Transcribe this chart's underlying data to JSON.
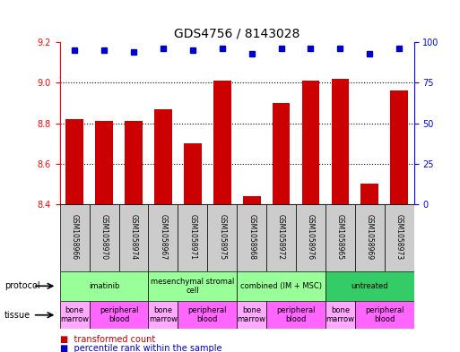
{
  "title": "GDS4756 / 8143028",
  "samples": [
    "GSM1058966",
    "GSM1058970",
    "GSM1058974",
    "GSM1058967",
    "GSM1058971",
    "GSM1058975",
    "GSM1058968",
    "GSM1058972",
    "GSM1058976",
    "GSM1058965",
    "GSM1058969",
    "GSM1058973"
  ],
  "transformed_counts": [
    8.82,
    8.81,
    8.81,
    8.87,
    8.7,
    9.01,
    8.44,
    8.9,
    9.01,
    9.02,
    8.5,
    8.96
  ],
  "percentile_ranks": [
    95,
    95,
    94,
    96,
    95,
    96,
    93,
    96,
    96,
    96,
    93,
    96
  ],
  "ylim_left": [
    8.4,
    9.2
  ],
  "ylim_right": [
    0,
    100
  ],
  "yticks_left": [
    8.4,
    8.6,
    8.8,
    9.0,
    9.2
  ],
  "yticks_right": [
    0,
    25,
    50,
    75,
    100
  ],
  "bar_color": "#cc0000",
  "dot_color": "#0000cc",
  "grid_color": "#000000",
  "protocols": [
    {
      "label": "imatinib",
      "start": 0,
      "end": 3,
      "color": "#99ff99"
    },
    {
      "label": "mesenchymal stromal\ncell",
      "start": 3,
      "end": 6,
      "color": "#99ff99"
    },
    {
      "label": "combined (IM + MSC)",
      "start": 6,
      "end": 9,
      "color": "#99ff99"
    },
    {
      "label": "untreated",
      "start": 9,
      "end": 12,
      "color": "#33cc66"
    }
  ],
  "tissues": [
    {
      "label": "bone\nmarrow",
      "start": 0,
      "end": 1,
      "color": "#ffaaff"
    },
    {
      "label": "peripheral\nblood",
      "start": 1,
      "end": 3,
      "color": "#ff66ff"
    },
    {
      "label": "bone\nmarrow",
      "start": 3,
      "end": 4,
      "color": "#ffaaff"
    },
    {
      "label": "peripheral\nblood",
      "start": 4,
      "end": 6,
      "color": "#ff66ff"
    },
    {
      "label": "bone\nmarrow",
      "start": 6,
      "end": 7,
      "color": "#ffaaff"
    },
    {
      "label": "peripheral\nblood",
      "start": 7,
      "end": 9,
      "color": "#ff66ff"
    },
    {
      "label": "bone\nmarrow",
      "start": 9,
      "end": 10,
      "color": "#ffaaff"
    },
    {
      "label": "peripheral\nblood",
      "start": 10,
      "end": 12,
      "color": "#ff66ff"
    }
  ],
  "legend_items": [
    {
      "label": "transformed count",
      "color": "#cc0000"
    },
    {
      "label": "percentile rank within the sample",
      "color": "#0000cc"
    }
  ]
}
